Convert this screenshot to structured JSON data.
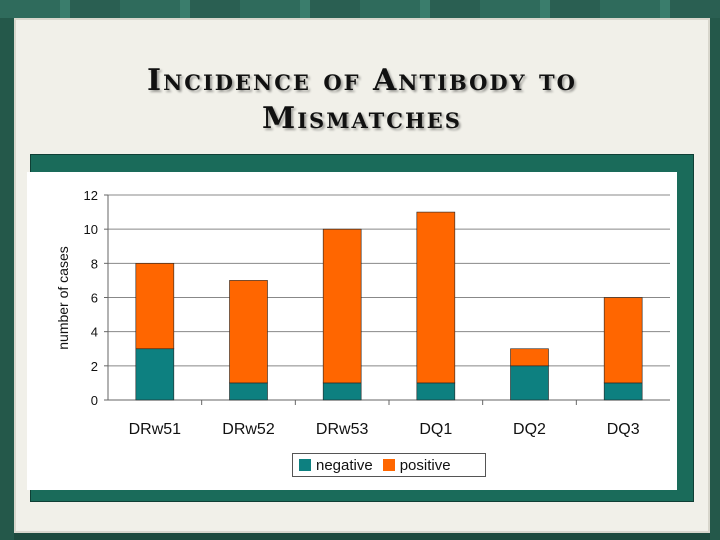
{
  "slide": {
    "title_line1": "Incidence of Antibody to",
    "title_line2": "Mismatches"
  },
  "colors": {
    "negative": "#0d8080",
    "positive": "#ff6600",
    "frame": "#1a6b5a"
  },
  "chart_data": {
    "type": "bar",
    "stacked": true,
    "title": "",
    "xlabel": "",
    "ylabel": "number of cases",
    "categories": [
      "DRw51",
      "DRw52",
      "DRw53",
      "DQ1",
      "DQ2",
      "DQ3"
    ],
    "series": [
      {
        "name": "negative",
        "values": [
          3,
          1,
          1,
          1,
          2,
          1
        ]
      },
      {
        "name": "positive",
        "values": [
          5,
          6,
          9,
          10,
          1,
          5
        ]
      }
    ],
    "ylim": [
      0,
      12
    ],
    "yticks": [
      "0",
      "2",
      "4",
      "6",
      "8",
      "10",
      "12"
    ],
    "grid": true,
    "legend": "bottom"
  }
}
